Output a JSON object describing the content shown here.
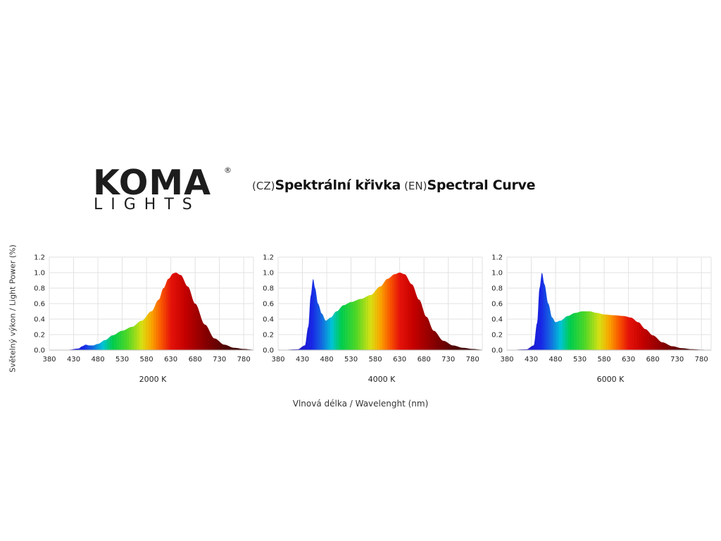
{
  "header": {
    "lang_cz": "(CZ)",
    "title_cz": "Spektrální křivka",
    "lang_en": "(EN)",
    "title_en": "Spectral Curve"
  },
  "logo": {
    "line1": "KOMA",
    "line2": "LIGHTS",
    "registered": "®"
  },
  "axis_labels": {
    "y": "Světelný výkon / Light Power (%)",
    "x": "Vlnová délka / Wavelenght (nm)"
  },
  "chart_data": [
    {
      "type": "area",
      "caption": "2000 K",
      "xlim": [
        380,
        800
      ],
      "ylim": [
        0,
        1.2
      ],
      "x_ticks": [
        380,
        430,
        480,
        530,
        580,
        630,
        680,
        730,
        780
      ],
      "y_ticks": [
        0.0,
        0.2,
        0.4,
        0.6,
        0.8,
        1.0,
        1.2
      ],
      "grid": true,
      "points": [
        [
          380,
          0
        ],
        [
          420,
          0.005
        ],
        [
          440,
          0.02
        ],
        [
          448,
          0.05
        ],
        [
          455,
          0.07
        ],
        [
          462,
          0.06
        ],
        [
          470,
          0.06
        ],
        [
          480,
          0.08
        ],
        [
          495,
          0.13
        ],
        [
          510,
          0.19
        ],
        [
          530,
          0.25
        ],
        [
          550,
          0.3
        ],
        [
          570,
          0.38
        ],
        [
          590,
          0.5
        ],
        [
          605,
          0.65
        ],
        [
          615,
          0.8
        ],
        [
          625,
          0.92
        ],
        [
          635,
          0.99
        ],
        [
          640,
          1.0
        ],
        [
          650,
          0.97
        ],
        [
          665,
          0.82
        ],
        [
          680,
          0.6
        ],
        [
          700,
          0.33
        ],
        [
          720,
          0.15
        ],
        [
          740,
          0.07
        ],
        [
          760,
          0.03
        ],
        [
          780,
          0.015
        ],
        [
          800,
          0.005
        ]
      ]
    },
    {
      "type": "area",
      "caption": "4000 K",
      "xlim": [
        380,
        800
      ],
      "ylim": [
        0,
        1.2
      ],
      "x_ticks": [
        380,
        430,
        480,
        530,
        580,
        630,
        680,
        730,
        780
      ],
      "y_ticks": [
        0.0,
        0.2,
        0.4,
        0.6,
        0.8,
        1.0,
        1.2
      ],
      "grid": true,
      "points": [
        [
          380,
          0
        ],
        [
          420,
          0.01
        ],
        [
          435,
          0.06
        ],
        [
          442,
          0.3
        ],
        [
          447,
          0.7
        ],
        [
          452,
          0.92
        ],
        [
          456,
          0.8
        ],
        [
          462,
          0.6
        ],
        [
          470,
          0.47
        ],
        [
          478,
          0.38
        ],
        [
          488,
          0.42
        ],
        [
          500,
          0.5
        ],
        [
          515,
          0.58
        ],
        [
          530,
          0.62
        ],
        [
          550,
          0.66
        ],
        [
          570,
          0.71
        ],
        [
          590,
          0.82
        ],
        [
          605,
          0.92
        ],
        [
          620,
          0.98
        ],
        [
          630,
          1.0
        ],
        [
          640,
          0.98
        ],
        [
          655,
          0.85
        ],
        [
          670,
          0.65
        ],
        [
          685,
          0.43
        ],
        [
          700,
          0.25
        ],
        [
          720,
          0.12
        ],
        [
          740,
          0.06
        ],
        [
          760,
          0.03
        ],
        [
          780,
          0.015
        ],
        [
          800,
          0.005
        ]
      ]
    },
    {
      "type": "area",
      "caption": "6000 K",
      "xlim": [
        380,
        800
      ],
      "ylim": [
        0,
        1.2
      ],
      "x_ticks": [
        380,
        430,
        480,
        530,
        580,
        630,
        680,
        730,
        780
      ],
      "y_ticks": [
        0.0,
        0.2,
        0.4,
        0.6,
        0.8,
        1.0,
        1.2
      ],
      "grid": true,
      "points": [
        [
          380,
          0
        ],
        [
          420,
          0.01
        ],
        [
          435,
          0.06
        ],
        [
          442,
          0.35
        ],
        [
          447,
          0.8
        ],
        [
          452,
          1.0
        ],
        [
          457,
          0.85
        ],
        [
          465,
          0.6
        ],
        [
          473,
          0.42
        ],
        [
          480,
          0.36
        ],
        [
          490,
          0.38
        ],
        [
          505,
          0.44
        ],
        [
          520,
          0.48
        ],
        [
          535,
          0.5
        ],
        [
          550,
          0.5
        ],
        [
          565,
          0.48
        ],
        [
          580,
          0.46
        ],
        [
          600,
          0.45
        ],
        [
          620,
          0.44
        ],
        [
          635,
          0.42
        ],
        [
          650,
          0.36
        ],
        [
          665,
          0.27
        ],
        [
          680,
          0.19
        ],
        [
          700,
          0.1
        ],
        [
          720,
          0.05
        ],
        [
          740,
          0.025
        ],
        [
          760,
          0.012
        ],
        [
          780,
          0.006
        ],
        [
          800,
          0.002
        ]
      ]
    }
  ],
  "colors": {
    "grid": "#e2e2e2",
    "text": "#222222",
    "logo": "#1d1d1d"
  }
}
